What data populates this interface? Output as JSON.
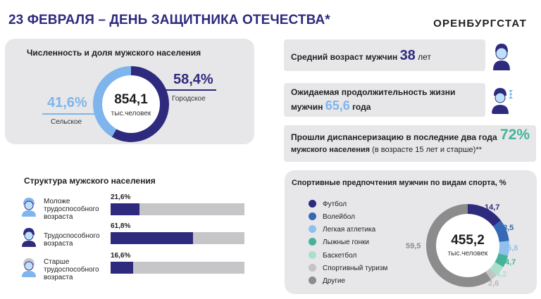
{
  "header": {
    "title": "23 ФЕВРАЛЯ – ДЕНЬ ЗАЩИТНИКА ОТЕЧЕСТВА*",
    "brand": "ОРЕНБУРГСТАТ"
  },
  "population": {
    "heading": "Численность и доля мужского населения",
    "total": "854,1",
    "total_unit": "тыс.человек",
    "urban_pct": "58,4%",
    "urban_label": "Городское",
    "rural_pct": "41,6%",
    "rural_label": "Сельское"
  },
  "age": {
    "prefix": "Средний возраст мужчин",
    "value": "38",
    "suffix": "лет"
  },
  "life": {
    "line1": "Ожидаемая продолжительность жизни",
    "line2_prefix": "мужчин",
    "value": "65,6",
    "suffix": "года"
  },
  "exam": {
    "line1": "Прошли диспансеризацию в последние два года",
    "value": "72%",
    "line2_bold": "мужского населения",
    "line2_rest": "(в возрасте 15 лет и старше)**"
  },
  "structure": {
    "heading": "Структура мужского населения",
    "rows": [
      {
        "label_lines": [
          "Моложе",
          "трудоспособного",
          "возраста"
        ],
        "value_label": "21,6%"
      },
      {
        "label_lines": [
          "Трудоспособного",
          "возраста"
        ],
        "value_label": "61,8%"
      },
      {
        "label_lines": [
          "Старше",
          "трудоспособного",
          "возраста"
        ],
        "value_label": "16,6%"
      }
    ]
  },
  "sports": {
    "heading": "Спортивные предпочтения мужчин по видам спорта, %",
    "total": "455,2",
    "total_unit": "тыс.человек",
    "slice_labels": [
      "14,7",
      "8,5",
      "5,8",
      "4,7",
      "4,2",
      "2,6",
      "59,5"
    ]
  },
  "colors": {
    "dark_blue": "#2e2a7e",
    "light_blue": "#7eb5ec",
    "teal": "#45b39a",
    "gray": "#8c8c8c",
    "panel": "#e7e7e9"
  },
  "chart_data": [
    {
      "type": "pie",
      "categories": [
        "Городское",
        "Сельское"
      ],
      "values": [
        58.4,
        41.6
      ],
      "colors": [
        "#2e2a7e",
        "#7eb5ec"
      ]
    },
    {
      "type": "bar",
      "title": "Структура мужского населения",
      "categories": [
        "Моложе трудоспособного возраста",
        "Трудоспособного возраста",
        "Старше трудоспособного возраста"
      ],
      "values": [
        21.6,
        61.8,
        16.6
      ],
      "ylim": [
        0,
        100
      ]
    },
    {
      "type": "pie",
      "title": "Спортивные предпочтения мужчин по видам спорта, %",
      "categories": [
        "Футбол",
        "Волейбол",
        "Легкая атлетика",
        "Лыжные гонки",
        "Баскетбол",
        "Спортивный туризм",
        "Другие"
      ],
      "values": [
        14.7,
        8.5,
        5.8,
        4.7,
        4.2,
        2.6,
        59.5
      ],
      "colors": [
        "#2e2a7e",
        "#3569b5",
        "#8fc0ee",
        "#45b39a",
        "#a9dfcb",
        "#c4c4c4",
        "#8c8c8c"
      ]
    }
  ]
}
